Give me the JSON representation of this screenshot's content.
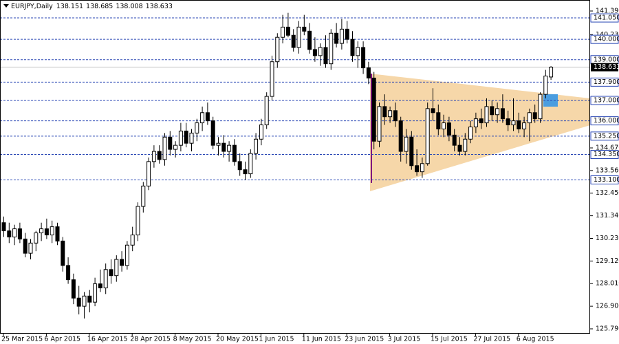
{
  "chart_data": {
    "type": "candlestick",
    "title": "EURJPY,Daily",
    "header_values": [
      138.151,
      138.685,
      138.008,
      138.633
    ],
    "categories": [
      "25 Mar 2015",
      null,
      null,
      null,
      null,
      null,
      null,
      null,
      "6 Apr 2015",
      null,
      null,
      null,
      null,
      null,
      null,
      null,
      "16 Apr 2015",
      null,
      null,
      null,
      null,
      null,
      null,
      null,
      "28 Apr 2015",
      null,
      null,
      null,
      null,
      null,
      null,
      null,
      "8 May 2015",
      null,
      null,
      null,
      null,
      null,
      null,
      null,
      "20 May 2015",
      null,
      null,
      null,
      null,
      null,
      null,
      null,
      "1 Jun 2015",
      null,
      null,
      null,
      null,
      null,
      null,
      null,
      "11 Jun 2015",
      null,
      null,
      null,
      null,
      null,
      null,
      null,
      "23 Jun 2015",
      null,
      null,
      null,
      null,
      null,
      null,
      null,
      "3 Jul 2015",
      null,
      null,
      null,
      null,
      null,
      null,
      null,
      "15 Jul 2015",
      null,
      null,
      null,
      null,
      null,
      null,
      null,
      "27 Jul 2015",
      null,
      null,
      null,
      null,
      null,
      null,
      null,
      "6 Aug 2015",
      null,
      null,
      null,
      null,
      null,
      null
    ],
    "candles": [
      [
        131.0,
        131.3,
        130.3,
        130.6
      ],
      [
        130.6,
        131.0,
        130.0,
        130.3
      ],
      [
        130.3,
        130.9,
        129.9,
        130.7
      ],
      [
        130.7,
        131.0,
        130.0,
        130.2
      ],
      [
        130.2,
        130.5,
        129.3,
        129.5
      ],
      [
        129.5,
        130.2,
        129.2,
        130.0
      ],
      [
        130.0,
        130.6,
        129.6,
        130.5
      ],
      [
        130.5,
        131.0,
        130.1,
        130.7
      ],
      [
        130.7,
        131.2,
        130.2,
        130.4
      ],
      [
        130.4,
        131.1,
        130.0,
        130.8
      ],
      [
        130.8,
        131.0,
        129.9,
        130.1
      ],
      [
        130.1,
        130.3,
        128.6,
        128.9
      ],
      [
        128.9,
        129.3,
        128.0,
        128.2
      ],
      [
        128.2,
        128.5,
        127.0,
        127.3
      ],
      [
        127.3,
        127.9,
        126.5,
        126.9
      ],
      [
        126.9,
        127.6,
        126.3,
        127.4
      ],
      [
        127.4,
        127.7,
        126.6,
        127.1
      ],
      [
        127.1,
        128.3,
        126.9,
        128.0
      ],
      [
        128.0,
        128.7,
        127.6,
        127.8
      ],
      [
        127.8,
        129.0,
        127.5,
        128.7
      ],
      [
        128.7,
        129.2,
        128.0,
        128.4
      ],
      [
        128.4,
        129.4,
        128.1,
        129.2
      ],
      [
        129.2,
        129.6,
        128.6,
        128.9
      ],
      [
        128.9,
        130.1,
        128.7,
        129.9
      ],
      [
        129.9,
        130.8,
        129.6,
        130.4
      ],
      [
        130.4,
        132.0,
        130.1,
        131.8
      ],
      [
        131.8,
        133.0,
        131.5,
        132.8
      ],
      [
        132.8,
        134.2,
        132.6,
        134.0
      ],
      [
        134.0,
        134.8,
        133.7,
        134.5
      ],
      [
        134.5,
        134.8,
        133.9,
        134.1
      ],
      [
        134.1,
        135.4,
        133.8,
        135.2
      ],
      [
        135.2,
        135.5,
        134.3,
        134.6
      ],
      [
        134.6,
        135.0,
        134.2,
        134.8
      ],
      [
        134.8,
        135.9,
        134.5,
        135.5
      ],
      [
        135.5,
        135.9,
        134.7,
        134.9
      ],
      [
        134.9,
        135.6,
        134.5,
        135.4
      ],
      [
        135.4,
        136.1,
        135.0,
        135.9
      ],
      [
        135.9,
        136.7,
        135.5,
        136.4
      ],
      [
        136.4,
        136.9,
        135.8,
        136.0
      ],
      [
        136.0,
        136.2,
        134.6,
        134.8
      ],
      [
        134.8,
        135.2,
        134.3,
        134.9
      ],
      [
        134.9,
        135.3,
        134.2,
        134.5
      ],
      [
        134.5,
        135.0,
        134.0,
        134.8
      ],
      [
        134.8,
        135.1,
        133.8,
        134.0
      ],
      [
        134.0,
        134.4,
        133.3,
        133.6
      ],
      [
        133.6,
        134.0,
        133.1,
        133.4
      ],
      [
        133.4,
        134.6,
        133.2,
        134.4
      ],
      [
        134.4,
        135.4,
        134.1,
        135.1
      ],
      [
        135.1,
        136.1,
        134.8,
        135.8
      ],
      [
        135.8,
        137.4,
        135.6,
        137.2
      ],
      [
        137.2,
        139.2,
        137.0,
        138.9
      ],
      [
        138.9,
        140.3,
        138.6,
        140.1
      ],
      [
        140.1,
        141.2,
        139.8,
        140.6
      ],
      [
        140.6,
        141.3,
        140.1,
        140.2
      ],
      [
        140.2,
        140.5,
        139.4,
        139.6
      ],
      [
        139.6,
        140.9,
        139.3,
        140.6
      ],
      [
        140.6,
        141.2,
        140.2,
        140.4
      ],
      [
        140.4,
        140.8,
        139.3,
        139.5
      ],
      [
        139.5,
        140.1,
        138.9,
        139.2
      ],
      [
        139.2,
        139.8,
        138.7,
        139.6
      ],
      [
        139.6,
        140.2,
        138.6,
        138.8
      ],
      [
        138.8,
        140.5,
        138.5,
        140.3
      ],
      [
        140.3,
        140.8,
        139.6,
        139.8
      ],
      [
        139.8,
        141.0,
        139.5,
        140.5
      ],
      [
        140.5,
        140.9,
        139.8,
        140.0
      ],
      [
        140.0,
        140.4,
        138.9,
        139.2
      ],
      [
        139.2,
        139.9,
        138.6,
        139.6
      ],
      [
        139.6,
        139.9,
        138.3,
        138.6
      ],
      [
        138.6,
        138.9,
        137.8,
        138.1
      ],
      [
        138.1,
        138.4,
        134.6,
        135.0
      ],
      [
        135.0,
        136.9,
        134.7,
        136.7
      ],
      [
        136.7,
        137.3,
        135.8,
        136.2
      ],
      [
        136.2,
        136.7,
        135.9,
        136.5
      ],
      [
        136.5,
        136.9,
        135.7,
        136.0
      ],
      [
        136.0,
        136.2,
        134.0,
        134.5
      ],
      [
        134.5,
        135.6,
        133.9,
        135.2
      ],
      [
        135.2,
        135.5,
        133.6,
        133.8
      ],
      [
        133.8,
        134.6,
        133.3,
        133.5
      ],
      [
        133.5,
        134.2,
        133.2,
        133.9
      ],
      [
        133.9,
        136.9,
        133.8,
        136.6
      ],
      [
        136.6,
        137.6,
        136.0,
        136.4
      ],
      [
        136.4,
        136.8,
        135.3,
        135.6
      ],
      [
        135.6,
        136.3,
        135.2,
        135.9
      ],
      [
        135.9,
        136.2,
        135.0,
        135.3
      ],
      [
        135.3,
        135.6,
        134.5,
        134.8
      ],
      [
        134.8,
        135.2,
        134.3,
        134.5
      ],
      [
        134.5,
        135.4,
        134.3,
        135.1
      ],
      [
        135.1,
        136.0,
        134.9,
        135.7
      ],
      [
        135.7,
        136.4,
        135.4,
        136.1
      ],
      [
        136.1,
        136.6,
        135.6,
        135.9
      ],
      [
        135.9,
        137.1,
        135.7,
        136.7
      ],
      [
        136.7,
        137.0,
        136.0,
        136.3
      ],
      [
        136.3,
        136.9,
        135.9,
        136.6
      ],
      [
        136.6,
        137.3,
        135.9,
        136.1
      ],
      [
        136.1,
        136.5,
        135.5,
        135.8
      ],
      [
        135.8,
        137.1,
        135.5,
        136.0
      ],
      [
        136.0,
        136.4,
        135.4,
        135.6
      ],
      [
        135.6,
        136.2,
        135.2,
        135.9
      ],
      [
        135.9,
        136.6,
        135.0,
        136.4
      ],
      [
        136.4,
        136.8,
        135.9,
        136.1
      ],
      [
        136.1,
        137.4,
        135.9,
        137.3
      ],
      [
        137.3,
        138.5,
        137.1,
        138.2
      ],
      [
        138.151,
        138.685,
        138.008,
        138.633
      ]
    ],
    "ylim": [
      125.553,
      141.93
    ],
    "yticks": [
      {
        "value": 141.39,
        "label": "141.390"
      },
      {
        "value": 140.23,
        "label": "140.230"
      },
      {
        "value": 134.67,
        "label": "134.670"
      },
      {
        "value": 133.56,
        "label": "133.560"
      },
      {
        "value": 132.45,
        "label": "132.450"
      },
      {
        "value": 131.34,
        "label": "131.340"
      },
      {
        "value": 130.23,
        "label": "130.230"
      },
      {
        "value": 129.12,
        "label": "129.120"
      },
      {
        "value": 128.01,
        "label": "128.010"
      },
      {
        "value": 126.9,
        "label": "126.900"
      },
      {
        "value": 125.79,
        "label": "125.790"
      }
    ],
    "levels": [
      {
        "value": 141.05,
        "label": "141.050"
      },
      {
        "value": 140.0,
        "label": "140.000"
      },
      {
        "value": 139.0,
        "label": "139.000"
      },
      {
        "value": 137.9,
        "label": "137.900"
      },
      {
        "value": 137.0,
        "label": "137.000"
      },
      {
        "value": 136.0,
        "label": "136.000"
      },
      {
        "value": 135.25,
        "label": "135.250"
      },
      {
        "value": 134.35,
        "label": "134.350"
      },
      {
        "value": 133.1,
        "label": "133.100"
      }
    ],
    "current_price": 138.633,
    "level_color": "#2846b4",
    "candle_color": "#000000"
  }
}
